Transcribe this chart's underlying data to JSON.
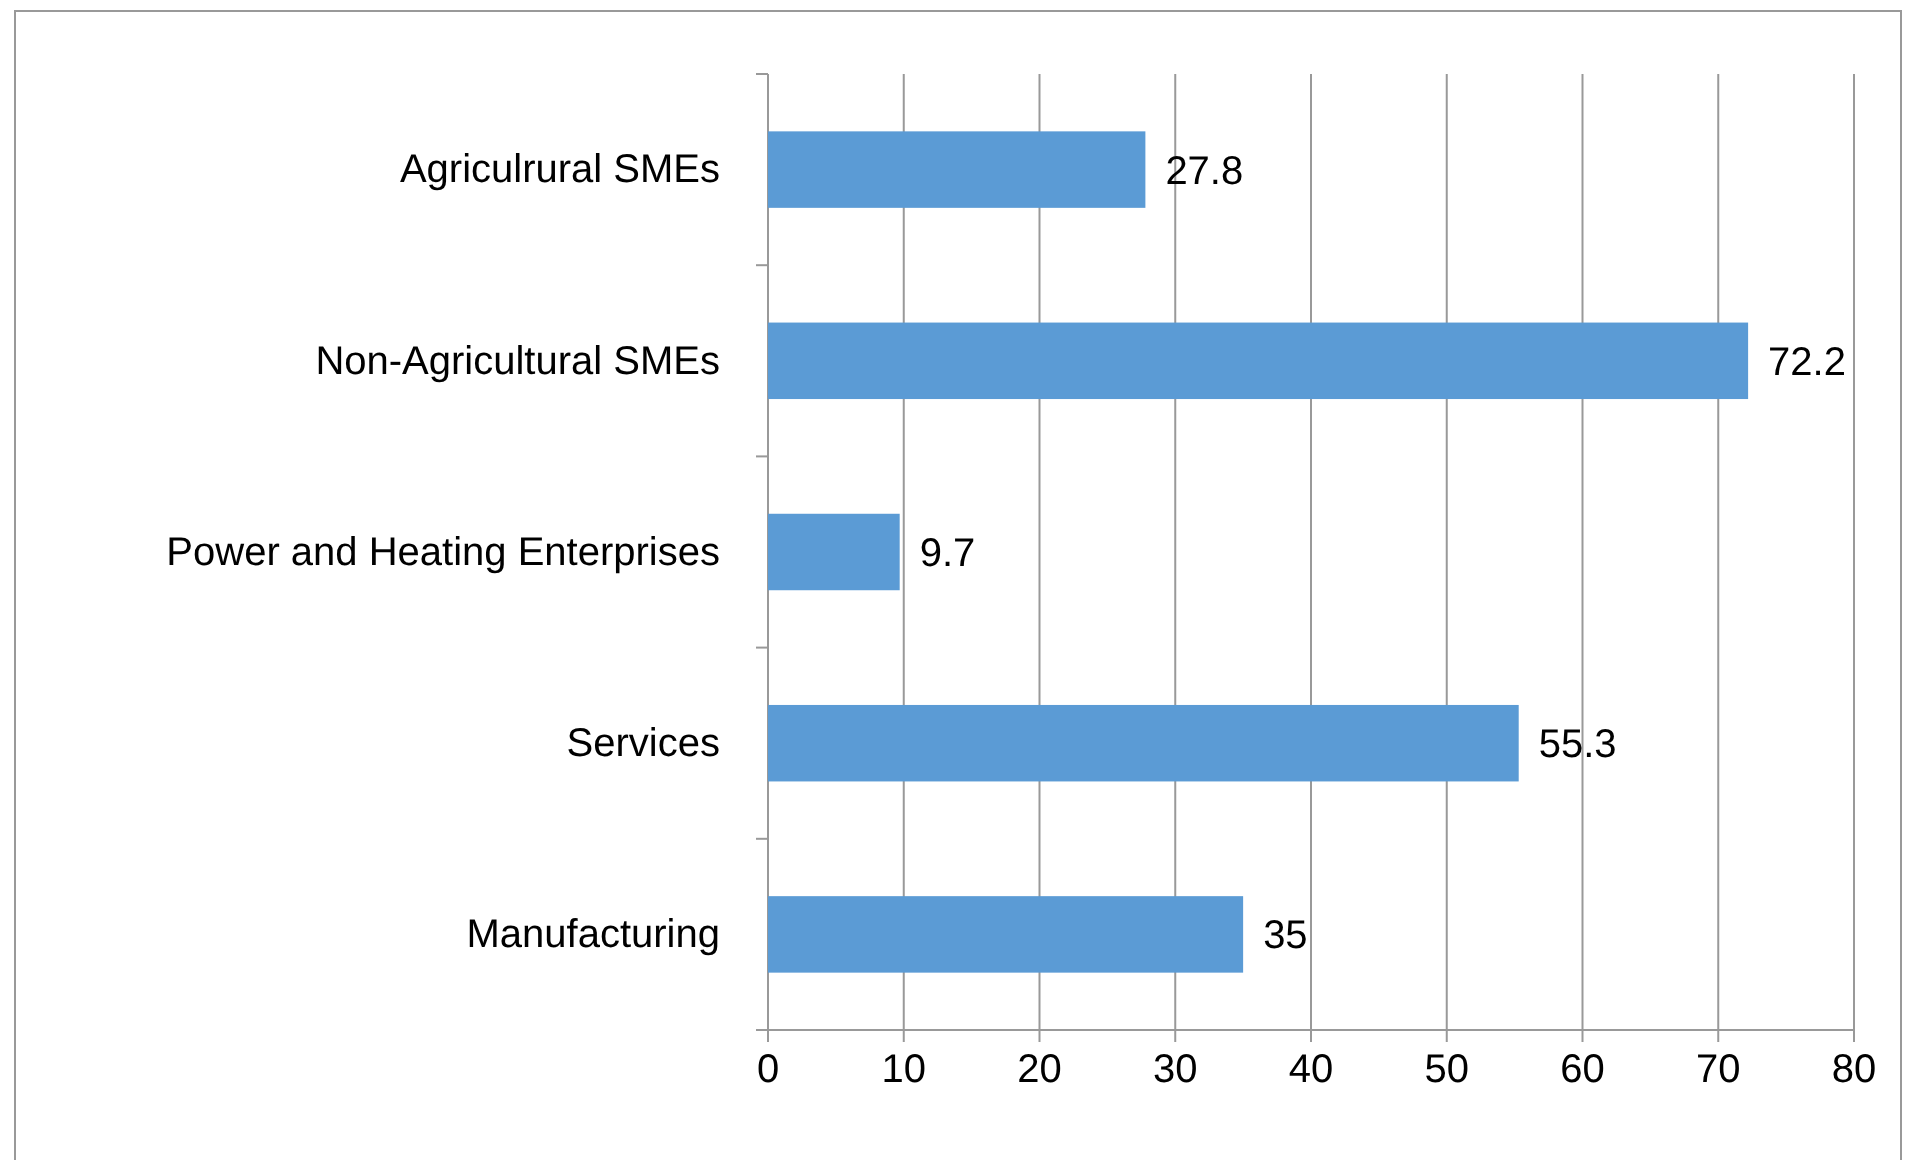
{
  "chart_data": {
    "type": "bar",
    "orientation": "horizontal",
    "categories": [
      "Agriculrural SMEs",
      "Non-Agricultural SMEs",
      "Power and Heating Enterprises",
      "Services",
      "Manufacturing"
    ],
    "values": [
      27.8,
      72.2,
      9.7,
      55.3,
      35
    ],
    "color": "#5b9bd5",
    "xlim": [
      0,
      80
    ],
    "xticks": [
      0,
      10,
      20,
      30,
      40,
      50,
      60,
      70,
      80
    ],
    "grid": "x",
    "data_labels": true
  }
}
